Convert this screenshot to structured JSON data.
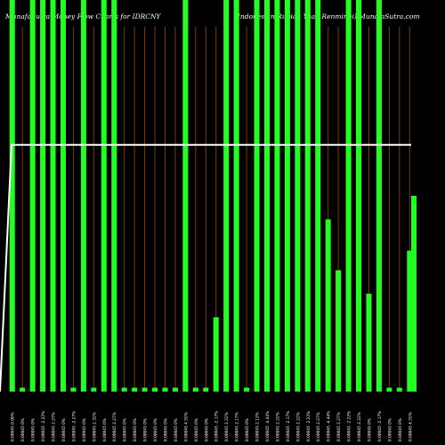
{
  "chart_data": {
    "type": "bar",
    "title_left": "MunafaSutra Money Flow Charts for IDRCNY",
    "title_right": "(Indonesian Rupiah Yuan Renminbi) MunafaSutra.com",
    "colors": {
      "background": "#000000",
      "bar": "#22ff22",
      "grid": "#7a3d00",
      "line": "#ffffff",
      "tick_label": "#ffffff"
    },
    "grid": true,
    "ylim": [
      0,
      1
    ],
    "categories": [
      "0.00045 0.00%",
      "0.00045 0%",
      "0.00045 0%",
      "0.00045 -2.22%",
      "0.00045 2.27%",
      "0.00045 0%",
      "0.00045 -2.27%",
      "0.00045 0%",
      "0.00045 2.32%",
      "0.00045 0%",
      "0.00045 2.27%",
      "0.00045 0%",
      "0.00045 0%",
      "0.00045 0%",
      "0.00045 0%",
      "0.00045 0%",
      "0.00045 0%",
      "0.00045 4.55%",
      "0.00045 0%",
      "0.00045 0%",
      "0.00045 -2.17%",
      "0.00045 2.22%",
      "0.00045 2.17%",
      "0.00045 0%",
      "0.00045 2.13%",
      "0.00045 -4.44%",
      "0.00045 2.22%",
      "0.00045 -2.17%",
      "0.00045 2.22%",
      "0.00045 -2.22%",
      "0.00045 2.27%",
      "0.00045 -4.44%",
      "0.00045 2.27%",
      "0.00045 -2.22%",
      "0.00045 2.22%",
      "0.00045 0%",
      "0.00045 -2.17%",
      "0.00045 0%",
      "0.00045 0%",
      "0.00045 4.55%"
    ],
    "values": [
      1.0,
      0.01,
      1.0,
      1.0,
      1.0,
      1.0,
      0.01,
      1.0,
      0.01,
      1.0,
      1.0,
      0.01,
      0.01,
      0.01,
      0.01,
      0.01,
      0.01,
      1.0,
      0.01,
      0.01,
      0.19,
      1.0,
      1.0,
      0.01,
      1.0,
      1.0,
      1.0,
      1.0,
      1.0,
      1.0,
      1.0,
      0.44,
      0.31,
      1.0,
      1.0,
      0.25,
      1.0,
      0.01,
      0.01,
      0.36
    ],
    "extra_bar": {
      "value": 0.5
    },
    "line_level": 0.63
  }
}
